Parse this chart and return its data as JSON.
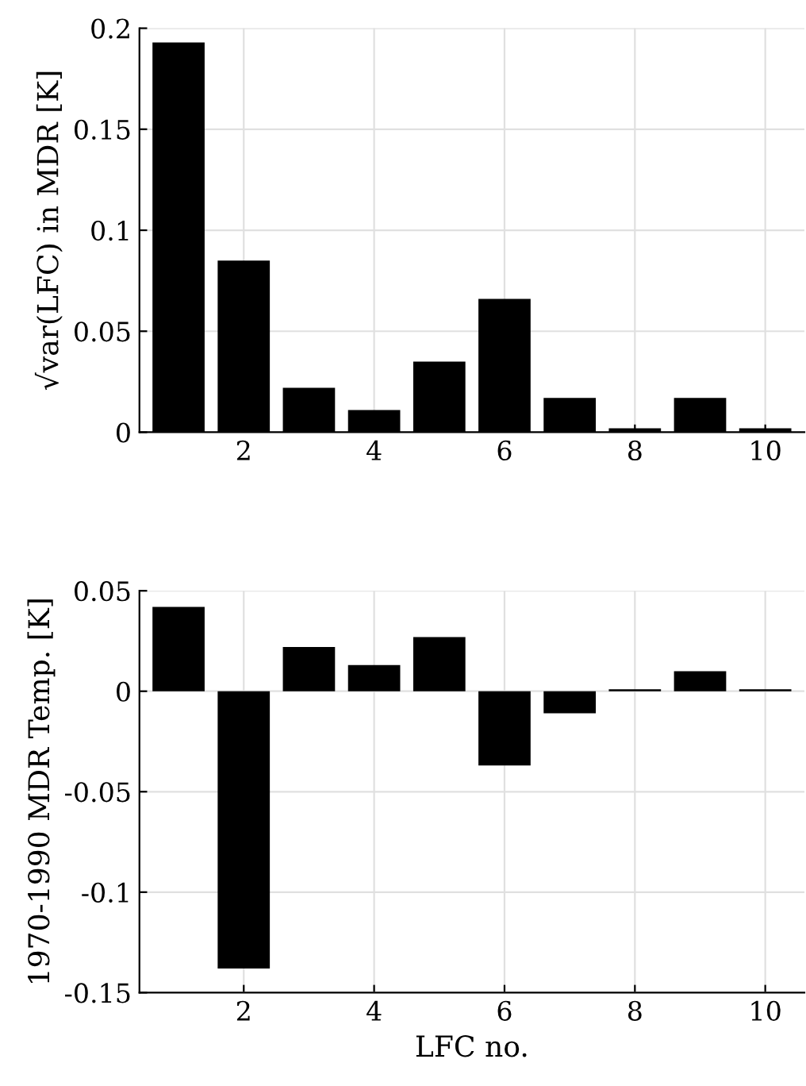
{
  "chart_data": [
    {
      "type": "bar",
      "ylabel": "√var(LFC) in MDR [K]",
      "x": [
        1,
        2,
        3,
        4,
        5,
        6,
        7,
        8,
        9,
        10
      ],
      "values": [
        0.193,
        0.085,
        0.022,
        0.011,
        0.035,
        0.066,
        0.017,
        0.002,
        0.017,
        0.002
      ],
      "color": "#000000",
      "xlim": [
        0.4,
        10.6
      ],
      "xticks": [
        2,
        4,
        6,
        8,
        10
      ],
      "ylim": [
        0,
        0.2
      ],
      "yticks": [
        0,
        0.05,
        0.1,
        0.15,
        0.2
      ],
      "grid": true
    },
    {
      "type": "bar",
      "ylabel": "1970-1990 MDR Temp. [K]",
      "xlabel": "LFC no.",
      "x": [
        1,
        2,
        3,
        4,
        5,
        6,
        7,
        8,
        9,
        10
      ],
      "values": [
        0.042,
        -0.138,
        0.022,
        0.013,
        0.027,
        -0.037,
        -0.011,
        0.001,
        0.01,
        0.001
      ],
      "color": "#000000",
      "xlim": [
        0.4,
        10.6
      ],
      "xticks": [
        2,
        4,
        6,
        8,
        10
      ],
      "ylim": [
        -0.15,
        0.05
      ],
      "yticks": [
        -0.15,
        -0.1,
        -0.05,
        0,
        0.05
      ],
      "grid": true
    }
  ]
}
